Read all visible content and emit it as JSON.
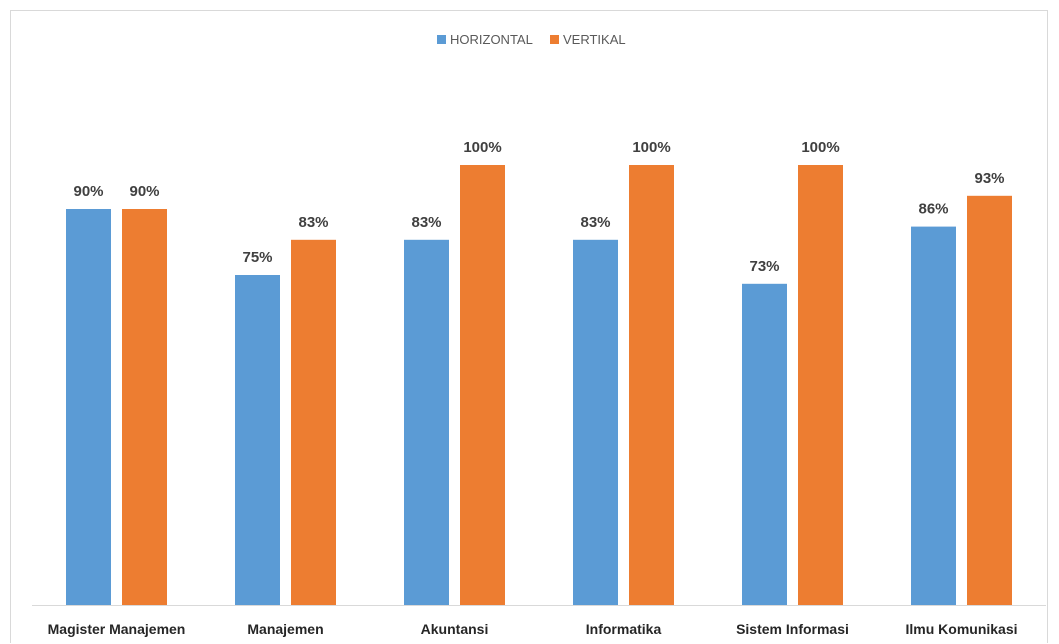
{
  "chart_data": {
    "type": "bar",
    "categories": [
      "Magister Manajemen",
      "Manajemen",
      "Akuntansi",
      "Informatika",
      "Sistem Informasi",
      "Ilmu Komunikasi"
    ],
    "series": [
      {
        "name": "HORIZONTAL",
        "values": [
          90,
          75,
          83,
          83,
          73,
          86
        ],
        "labels": [
          "90%",
          "75%",
          "83%",
          "83%",
          "73%",
          "86%"
        ],
        "color": "#5b9bd5"
      },
      {
        "name": "VERTIKAL",
        "values": [
          90,
          83,
          100,
          100,
          100,
          93
        ],
        "labels": [
          "90%",
          "83%",
          "100%",
          "100%",
          "100%",
          "93%"
        ],
        "color": "#ed7d31"
      }
    ],
    "ylim": [
      0,
      100
    ],
    "unit": "%",
    "legend": "top-center",
    "grid": false,
    "title": "",
    "xlabel": "",
    "ylabel": ""
  }
}
